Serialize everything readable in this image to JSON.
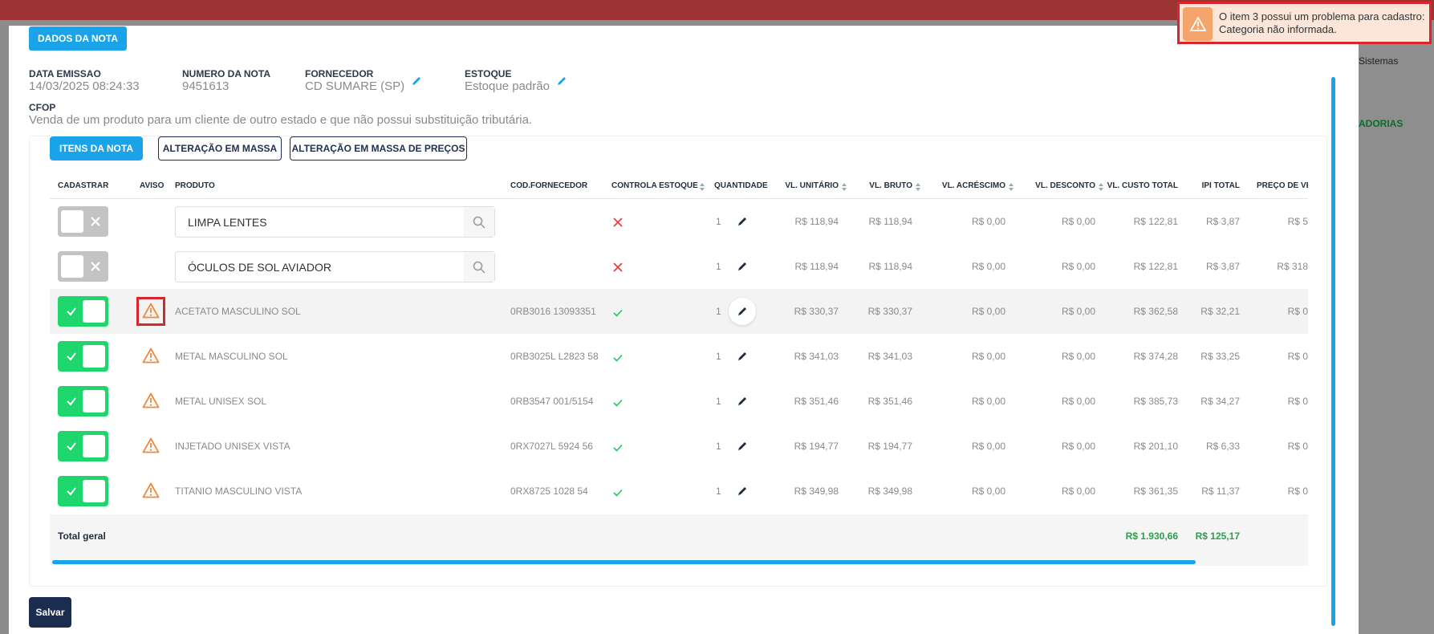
{
  "toast": {
    "line1": "O item 3 possui um problema para cadastro:",
    "line2": "Categoria não informada."
  },
  "background": {
    "menu_text": "Sistemas",
    "nav_text": "ADORIAS"
  },
  "tab": "DADOS DA NOTA",
  "fields": [
    {
      "label": "DATA EMISSAO",
      "value": "14/03/2025 08:24:33",
      "editable": false
    },
    {
      "label": "NUMERO DA NOTA",
      "value": "9451613",
      "editable": false
    },
    {
      "label": "FORNECEDOR",
      "value": "CD SUMARE (SP)",
      "editable": true
    },
    {
      "label": "ESTOQUE",
      "value": "Estoque padrão",
      "editable": true
    }
  ],
  "cfop": {
    "label": "CFOP",
    "value": "Venda de um produto para um cliente de outro estado e que não possui substituição tributária."
  },
  "buttons": [
    "ITENS DA NOTA",
    "ALTERAÇÃO EM MASSA",
    "ALTERAÇÃO EM MASSA DE PREÇOS"
  ],
  "table": {
    "columns": [
      "CADASTRAR",
      "AVISO",
      "PRODUTO",
      "COD.FORNECEDOR",
      "CONTROLA ESTOQUE",
      "QUANTIDADE",
      "VL. UNITÁRIO",
      "VL. BRUTO",
      "VL. ACRÉSCIMO",
      "VL. DESCONTO",
      "VL. CUSTO TOTAL",
      "IPI TOTAL",
      "PREÇO DE VENDA"
    ],
    "rows": [
      {
        "cadastrar": false,
        "aviso": false,
        "produto": "LIMPA LENTES",
        "cod": "",
        "controla": false,
        "quantidade": "1",
        "valores": [
          "R$ 118,94",
          "R$ 118,94",
          "R$ 0,00",
          "R$ 0,00",
          "R$ 122,81",
          "R$ 3,87",
          "R$ 5"
        ]
      },
      {
        "cadastrar": false,
        "aviso": false,
        "produto": "ÓCULOS DE SOL AVIADOR",
        "cod": "",
        "controla": false,
        "quantidade": "1",
        "valores": [
          "R$ 118,94",
          "R$ 118,94",
          "R$ 0,00",
          "R$ 0,00",
          "R$ 122,81",
          "R$ 3,87",
          "R$ 318"
        ]
      },
      {
        "cadastrar": true,
        "aviso": true,
        "produto": "ACETATO MASCULINO SOL",
        "cod": "0RB3016 13093351",
        "controla": true,
        "quantidade": "1",
        "valores": [
          "R$ 330,37",
          "R$ 330,37",
          "R$ 0,00",
          "R$ 0,00",
          "R$ 362,58",
          "R$ 32,21",
          "R$ 0"
        ]
      },
      {
        "cadastrar": true,
        "aviso": true,
        "produto": "METAL MASCULINO SOL",
        "cod": "0RB3025L L2823 58",
        "controla": true,
        "quantidade": "1",
        "valores": [
          "R$ 341,03",
          "R$ 341,03",
          "R$ 0,00",
          "R$ 0,00",
          "R$ 374,28",
          "R$ 33,25",
          "R$ 0"
        ]
      },
      {
        "cadastrar": true,
        "aviso": true,
        "produto": "METAL UNISEX SOL",
        "cod": "0RB3547 001/5154",
        "controla": true,
        "quantidade": "1",
        "valores": [
          "R$ 351,46",
          "R$ 351,46",
          "R$ 0,00",
          "R$ 0,00",
          "R$ 385,73",
          "R$ 34,27",
          "R$ 0"
        ]
      },
      {
        "cadastrar": true,
        "aviso": true,
        "produto": "INJETADO UNISEX VISTA",
        "cod": "0RX7027L 5924 56",
        "controla": true,
        "quantidade": "1",
        "valores": [
          "R$ 194,77",
          "R$ 194,77",
          "R$ 0,00",
          "R$ 0,00",
          "R$ 201,10",
          "R$ 6,33",
          "R$ 0"
        ]
      },
      {
        "cadastrar": true,
        "aviso": true,
        "produto": "TITANIO MASCULINO VISTA",
        "cod": "0RX8725 1028 54",
        "controla": true,
        "quantidade": "1",
        "valores": [
          "R$ 349,98",
          "R$ 349,98",
          "R$ 0,00",
          "R$ 0,00",
          "R$ 361,35",
          "R$ 11,37",
          "R$ 0"
        ]
      }
    ],
    "total": {
      "label": "Total geral",
      "custo_total": "R$ 1.930,66",
      "ipi_total": "R$ 125,17"
    }
  },
  "save": "Salvar"
}
